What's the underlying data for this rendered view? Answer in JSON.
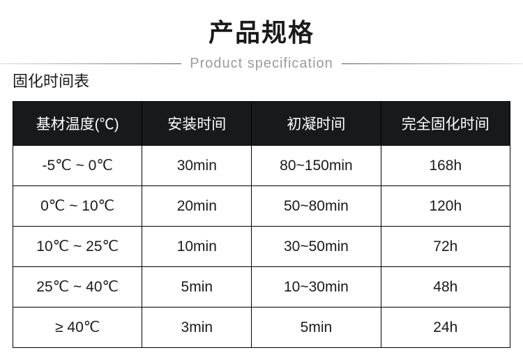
{
  "header": {
    "title_cn": "产品规格",
    "title_en": "Product specification"
  },
  "table": {
    "caption": "固化时间表",
    "columns": [
      "基材温度(℃)",
      "安装时间",
      "初凝时间",
      "完全固化时间"
    ],
    "rows": [
      [
        "-5℃ ~ 0℃",
        "30min",
        "80~150min",
        "168h"
      ],
      [
        "0℃ ~ 10℃",
        "20min",
        "50~80min",
        "120h"
      ],
      [
        "10℃ ~ 25℃",
        "10min",
        "30~50min",
        "72h"
      ],
      [
        "25℃ ~ 40℃",
        "5min",
        "10~30min",
        "48h"
      ],
      [
        "≥ 40℃",
        "3min",
        "5min",
        "24h"
      ]
    ],
    "header_bg": "#18191b",
    "header_fg": "#ffffff",
    "cell_fg": "#1a1a1a",
    "border_color": "#000000",
    "title_cn_fontsize": 36,
    "title_en_fontsize": 20,
    "caption_fontsize": 22,
    "cell_fontsize": 21
  }
}
